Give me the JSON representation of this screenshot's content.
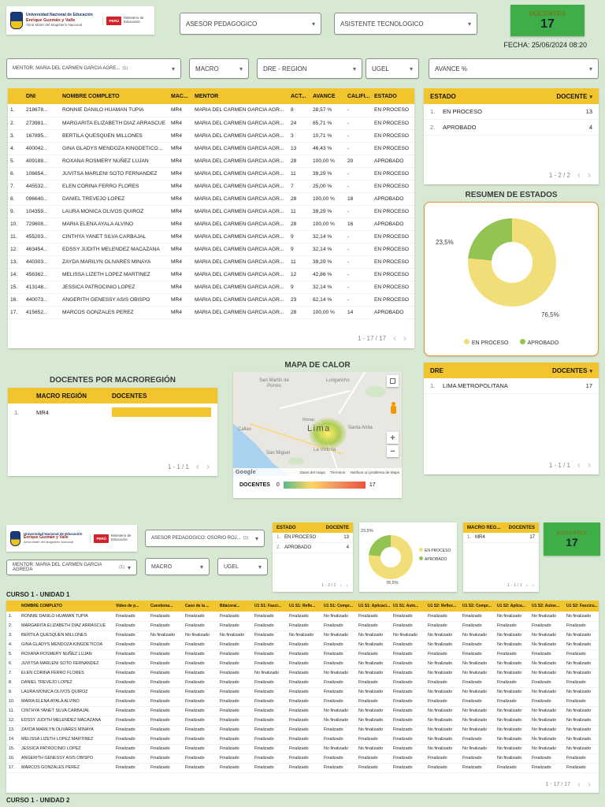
{
  "page": {
    "fecha": "FECHA: 25/06/2024 08:20"
  },
  "colors": {
    "background": "#d8e9d3",
    "table_header_yellow": "#f2c42d",
    "scorecard_green": "#3fae49",
    "donut_en_proceso": "#f2de79",
    "donut_aprobado": "#93c353",
    "resumen_card_border": "#e69138"
  },
  "logo": {
    "line1": "Universidad Nacional de Educación",
    "line2": "Enrique Guzmán y Valle",
    "line3": "Alma Máter del Magisterio Nacional",
    "peru": "PERÚ",
    "ministerio": "Ministerio de Educación"
  },
  "top_filters": {
    "asesor": "ASESOR PEDAGOGICO",
    "asistente": "ASISTENTE TECNOLOGICO"
  },
  "scorecard": {
    "label": "DOCENTES",
    "value": "17"
  },
  "filters": {
    "mentor": "MENTOR: MARIA DEL CARMEN GARCIA AGRE...",
    "mentor_count": "(1)",
    "macro": "MACRO",
    "dre": "DRE - REGION",
    "ugel": "UGEL",
    "avance": "AVANCE %"
  },
  "main_table": {
    "headers": {
      "dni": "DNI",
      "nombre": "NOMBRE COMPLETO",
      "macro": "MAC...",
      "mentor": "MENTOR",
      "act": "ACT...",
      "avance": "AVANCE",
      "calif": "CALIFI...",
      "estado": "ESTADO"
    },
    "rows": [
      {
        "dni": "218678...",
        "nombre": "RONNIE DANILO HUAMAN TUPIA",
        "macro": "MR4",
        "mentor": "MARIA DEL CARMEN GARCIA AGR...",
        "act": "8",
        "avance": "28,57 %",
        "calif": "-",
        "estado": "EN PROCESO"
      },
      {
        "dni": "273981...",
        "nombre": "MARGARITA ELIZABETH DIAZ ARRASCUE",
        "macro": "MR4",
        "mentor": "MARIA DEL CARMEN GARCIA AGR...",
        "act": "24",
        "avance": "85,71 %",
        "calif": "-",
        "estado": "EN PROCESO"
      },
      {
        "dni": "167895...",
        "nombre": "BERTILA QUESQUEN MILLONES",
        "macro": "MR4",
        "mentor": "MARIA DEL CARMEN GARCIA AGR...",
        "act": "3",
        "avance": "10,71 %",
        "calif": "-",
        "estado": "EN PROCESO"
      },
      {
        "dni": "400042...",
        "nombre": "GINA GLADYS MENDOZA KINGDETICO...",
        "macro": "MR4",
        "mentor": "MARIA DEL CARMEN GARCIA AGR...",
        "act": "13",
        "avance": "46,43 %",
        "calif": "-",
        "estado": "EN PROCESO"
      },
      {
        "dni": "409188...",
        "nombre": "ROXANA ROSMERY NUÑEZ LUJAN",
        "macro": "MR4",
        "mentor": "MARIA DEL CARMEN GARCIA AGR...",
        "act": "28",
        "avance": "100,00 %",
        "calif": "20",
        "estado": "APROBADO"
      },
      {
        "dni": "106654...",
        "nombre": "JUVITSA MARLENI SOTO FERNANDEZ",
        "macro": "MR4",
        "mentor": "MARIA DEL CARMEN GARCIA AGR...",
        "act": "11",
        "avance": "39,29 %",
        "calif": "-",
        "estado": "EN PROCESO"
      },
      {
        "dni": "445532...",
        "nombre": "ELEN CORINA FERRO FLORES",
        "macro": "MR4",
        "mentor": "MARIA DEL CARMEN GARCIA AGR...",
        "act": "7",
        "avance": "25,00 %",
        "calif": "-",
        "estado": "EN PROCESO"
      },
      {
        "dni": "096640...",
        "nombre": "DANIEL TREVEJO LOPEZ",
        "macro": "MR4",
        "mentor": "MARIA DEL CARMEN GARCIA AGR...",
        "act": "28",
        "avance": "100,00 %",
        "calif": "18",
        "estado": "APROBADO"
      },
      {
        "dni": "104359...",
        "nombre": "LAURA MONICA OLIVOS QUIROZ",
        "macro": "MR4",
        "mentor": "MARIA DEL CARMEN GARCIA AGR...",
        "act": "11",
        "avance": "39,29 %",
        "calif": "-",
        "estado": "EN PROCESO"
      },
      {
        "dni": "729808...",
        "nombre": "MARIA ELENA AYALA ALVINO",
        "macro": "MR4",
        "mentor": "MARIA DEL CARMEN GARCIA AGR...",
        "act": "28",
        "avance": "100,00 %",
        "calif": "16",
        "estado": "APROBADO"
      },
      {
        "dni": "455203...",
        "nombre": "CINTHYA YANET SILVA CARBAJAL",
        "macro": "MR4",
        "mentor": "MARIA DEL CARMEN GARCIA AGR...",
        "act": "9",
        "avance": "32,14 %",
        "calif": "-",
        "estado": "EN PROCESO"
      },
      {
        "dni": "463454...",
        "nombre": "EDSSY JUDITH MELENDEZ MACAZANA",
        "macro": "MR4",
        "mentor": "MARIA DEL CARMEN GARCIA AGR...",
        "act": "9",
        "avance": "32,14 %",
        "calif": "-",
        "estado": "EN PROCESO"
      },
      {
        "dni": "440303...",
        "nombre": "ZAYDA MARILYN OLIVARES MINAYA",
        "macro": "MR4",
        "mentor": "MARIA DEL CARMEN GARCIA AGR...",
        "act": "11",
        "avance": "39,29 %",
        "calif": "-",
        "estado": "EN PROCESO"
      },
      {
        "dni": "456362...",
        "nombre": "MELISSA LIZETH LOPEZ MARTINEZ",
        "macro": "MR4",
        "mentor": "MARIA DEL CARMEN GARCIA AGR...",
        "act": "12",
        "avance": "42,86 %",
        "calif": "-",
        "estado": "EN PROCESO"
      },
      {
        "dni": "413148...",
        "nombre": "JESSICA PATROCINIO LOPEZ",
        "macro": "MR4",
        "mentor": "MARIA DEL CARMEN GARCIA AGR...",
        "act": "9",
        "avance": "32,14 %",
        "calif": "-",
        "estado": "EN PROCESO"
      },
      {
        "dni": "440073...",
        "nombre": "ANGERITH GENESSY ASIS OBISPO",
        "macro": "MR4",
        "mentor": "MARIA DEL CARMEN GARCIA AGR...",
        "act": "23",
        "avance": "82,14 %",
        "calif": "-",
        "estado": "EN PROCESO"
      },
      {
        "dni": "415652...",
        "nombre": "MARCOS GONZALES PEREZ",
        "macro": "MR4",
        "mentor": "MARIA DEL CARMEN GARCIA AGR...",
        "act": "28",
        "avance": "100,00 %",
        "calif": "14",
        "estado": "APROBADO"
      }
    ],
    "pagination": "1 - 17 / 17"
  },
  "estado_table": {
    "header_estado": "ESTADO",
    "header_docente": "DOCENTE",
    "rows": [
      {
        "label": "EN PROCESO",
        "value": "13"
      },
      {
        "label": "APROBADO",
        "value": "4"
      }
    ],
    "pagination": "1 - 2 / 2"
  },
  "resumen": {
    "title": "RESUMEN DE ESTADOS",
    "pct_aprobado": "23,5%",
    "pct_en_proceso": "76,5%",
    "legend": [
      {
        "label": "EN PROCESO",
        "color": "#f2de79"
      },
      {
        "label": "APROBADO",
        "color": "#93c353"
      }
    ]
  },
  "macro_table": {
    "title": "DOCENTES POR MACROREGIÓN",
    "header_macro": "MACRO REGIÓN",
    "header_docentes": "DOCENTES",
    "rows": [
      {
        "label": "MR4",
        "bar_pct": 100
      }
    ],
    "pagination": "1 - 1 / 1"
  },
  "map": {
    "title": "MAPA DE CALOR",
    "labels": [
      "San Martín de Porres",
      "Lurigancho",
      "Rímac",
      "Lima",
      "Santa Anita",
      "Callao",
      "San Miguel",
      "La Victoria"
    ],
    "google": "Google",
    "attribution": [
      "Datos del mapa",
      "Términos",
      "Notificar un problema de Maps"
    ],
    "legend_label": "DOCENTES",
    "legend_min": "0",
    "legend_max": "17"
  },
  "dre_table": {
    "header_dre": "DRE",
    "header_docentes": "DOCENTES",
    "rows": [
      {
        "label": "LIMA METROPOLITANA",
        "value": "17"
      }
    ],
    "pagination": "1 - 1 / 1"
  },
  "section2": {
    "asesor": "ASESOR PEDAGOGICO: OSORIO ROJ...",
    "asesor_count": "(1)",
    "mentor": "MENTOR: MARIA DEL CARMEN GARCIA AGREDA",
    "mentor_count": "(1)",
    "macro": "MACRO",
    "ugel": "UGEL",
    "estado_mini": {
      "header_estado": "ESTADO",
      "header_docente": "DOCENTE",
      "rows": [
        {
          "label": "EN PROCESO",
          "value": "13"
        },
        {
          "label": "APROBADO",
          "value": "4"
        }
      ],
      "pagination": "1 - 2 / 2"
    },
    "donut_mini": {
      "pct_aprobado": "23,5%",
      "pct_en_proceso": "76,5%",
      "legend": [
        "EN PROCESO",
        "APROBADO"
      ]
    },
    "macro_mini": {
      "header_macro": "MACRO REG...",
      "header_docentes": "DOCENTES",
      "rows": [
        {
          "label": "MR4",
          "value": "17"
        }
      ],
      "pagination": "1 - 1 / 1"
    },
    "scorecard": {
      "label": "DOCENTES",
      "value": "17"
    },
    "curso1_title": "CURSO 1 - UNIDAD 1",
    "curso2_title": "CURSO 1 - UNIDAD 2"
  },
  "curso_table": {
    "headers": [
      "NOMBRE COMPLETO",
      "Video de p...",
      "Cuestiona...",
      "Caso de la ...",
      "Bitácora/...",
      "U1 S1: Fasci...",
      "U1 S1: Refle...",
      "U1 S1: Compr...",
      "U1 S1: Aplicaci...",
      "U1 S1: Auto...",
      "U1 S2: Reflex...",
      "U1 S2: Compr...",
      "U1 S2: Aplica...",
      "U1 S2: Autoe...",
      "U1 S2: Fascícu..."
    ],
    "rows": [
      {
        "name": "RONNIE DANILO HUAMAN TUPIA",
        "statuses": [
          "Finalizado",
          "Finalizado",
          "Finalizado",
          "Finalizado",
          "Finalizado",
          "Finalizado",
          "No finalizado",
          "Finalizado",
          "Finalizado",
          "Finalizado",
          "Finalizado",
          "No finalizado",
          "No finalizado",
          "No finalizado"
        ]
      },
      {
        "name": "MARGARITA ELIZABETH DIAZ ARRASCUE",
        "statuses": [
          "Finalizado",
          "Finalizado",
          "Finalizado",
          "Finalizado",
          "Finalizado",
          "Finalizado",
          "Finalizado",
          "Finalizado",
          "Finalizado",
          "Finalizado",
          "Finalizado",
          "Finalizado",
          "Finalizado",
          "Finalizado"
        ]
      },
      {
        "name": "BERTILA QUESQUEN MILLONES",
        "statuses": [
          "Finalizado",
          "No finalizado",
          "No finalizado",
          "No finalizado",
          "Finalizado",
          "No finalizado",
          "No finalizado",
          "No finalizado",
          "No finalizado",
          "No finalizado",
          "No finalizado",
          "No finalizado",
          "No finalizado",
          "No finalizado"
        ]
      },
      {
        "name": "GINA GLADYS MENDOZA KINGDETICOA",
        "statuses": [
          "Finalizado",
          "Finalizado",
          "Finalizado",
          "Finalizado",
          "Finalizado",
          "Finalizado",
          "Finalizado",
          "No finalizado",
          "Finalizado",
          "No finalizado",
          "Finalizado",
          "No finalizado",
          "No finalizado",
          "No finalizado"
        ]
      },
      {
        "name": "ROXANA ROSMERY NUÑEZ LUJAN",
        "statuses": [
          "Finalizado",
          "Finalizado",
          "Finalizado",
          "Finalizado",
          "Finalizado",
          "Finalizado",
          "Finalizado",
          "Finalizado",
          "Finalizado",
          "Finalizado",
          "Finalizado",
          "Finalizado",
          "Finalizado",
          "Finalizado"
        ]
      },
      {
        "name": "JUVITSA MARLENI SOTO FERNANDEZ",
        "statuses": [
          "Finalizado",
          "Finalizado",
          "Finalizado",
          "Finalizado",
          "Finalizado",
          "Finalizado",
          "Finalizado",
          "No finalizado",
          "Finalizado",
          "No finalizado",
          "No finalizado",
          "No finalizado",
          "No finalizado",
          "No finalizado"
        ]
      },
      {
        "name": "ELEN CORINA FERRO FLORES",
        "statuses": [
          "Finalizado",
          "Finalizado",
          "Finalizado",
          "Finalizado",
          "No finalizado",
          "Finalizado",
          "No finalizado",
          "No finalizado",
          "Finalizado",
          "No finalizado",
          "No finalizado",
          "No finalizado",
          "No finalizado",
          "No finalizado"
        ]
      },
      {
        "name": "DANIEL TREVEJO LOPEZ",
        "statuses": [
          "Finalizado",
          "Finalizado",
          "Finalizado",
          "Finalizado",
          "Finalizado",
          "Finalizado",
          "Finalizado",
          "Finalizado",
          "Finalizado",
          "Finalizado",
          "Finalizado",
          "Finalizado",
          "Finalizado",
          "Finalizado"
        ]
      },
      {
        "name": "LAURA MONICA OLIVOS QUIROZ",
        "statuses": [
          "Finalizado",
          "Finalizado",
          "Finalizado",
          "Finalizado",
          "Finalizado",
          "Finalizado",
          "Finalizado",
          "No finalizado",
          "Finalizado",
          "No finalizado",
          "No finalizado",
          "No finalizado",
          "No finalizado",
          "No finalizado"
        ]
      },
      {
        "name": "MARIA ELENA AYALA ALVINO",
        "statuses": [
          "Finalizado",
          "Finalizado",
          "Finalizado",
          "Finalizado",
          "Finalizado",
          "Finalizado",
          "Finalizado",
          "Finalizado",
          "Finalizado",
          "Finalizado",
          "Finalizado",
          "Finalizado",
          "Finalizado",
          "Finalizado"
        ]
      },
      {
        "name": "CINTHYA YANET SILVA CARBAJAL",
        "statuses": [
          "Finalizado",
          "Finalizado",
          "Finalizado",
          "Finalizado",
          "Finalizado",
          "Finalizado",
          "No finalizado",
          "No finalizado",
          "Finalizado",
          "No finalizado",
          "No finalizado",
          "No finalizado",
          "No finalizado",
          "No finalizado"
        ]
      },
      {
        "name": "EDSSY JUDITH MELENDEZ MACAZANA",
        "statuses": [
          "Finalizado",
          "Finalizado",
          "Finalizado",
          "Finalizado",
          "Finalizado",
          "Finalizado",
          "No finalizado",
          "No finalizado",
          "Finalizado",
          "No finalizado",
          "No finalizado",
          "No finalizado",
          "No finalizado",
          "No finalizado"
        ]
      },
      {
        "name": "ZAYDA MARILYN OLIVARES MINAYA",
        "statuses": [
          "Finalizado",
          "Finalizado",
          "Finalizado",
          "Finalizado",
          "Finalizado",
          "Finalizado",
          "Finalizado",
          "No finalizado",
          "Finalizado",
          "No finalizado",
          "No finalizado",
          "No finalizado",
          "No finalizado",
          "No finalizado"
        ]
      },
      {
        "name": "MELISSA LIZETH LOPEZ MARTINEZ",
        "statuses": [
          "Finalizado",
          "Finalizado",
          "Finalizado",
          "Finalizado",
          "Finalizado",
          "Finalizado",
          "Finalizado",
          "Finalizado",
          "Finalizado",
          "No finalizado",
          "Finalizado",
          "No finalizado",
          "No finalizado",
          "No finalizado"
        ]
      },
      {
        "name": "JESSICA PATROCINIO LOPEZ",
        "statuses": [
          "Finalizado",
          "Finalizado",
          "Finalizado",
          "Finalizado",
          "Finalizado",
          "Finalizado",
          "No finalizado",
          "No finalizado",
          "Finalizado",
          "No finalizado",
          "No finalizado",
          "No finalizado",
          "No finalizado",
          "No finalizado"
        ]
      },
      {
        "name": "ANGERITH GENESSY ASIS OBISPO",
        "statuses": [
          "Finalizado",
          "Finalizado",
          "Finalizado",
          "Finalizado",
          "Finalizado",
          "Finalizado",
          "Finalizado",
          "Finalizado",
          "Finalizado",
          "Finalizado",
          "Finalizado",
          "No finalizado",
          "Finalizado",
          "Finalizado"
        ]
      },
      {
        "name": "MARCOS GONZALES PEREZ",
        "statuses": [
          "Finalizado",
          "Finalizado",
          "Finalizado",
          "Finalizado",
          "Finalizado",
          "Finalizado",
          "Finalizado",
          "Finalizado",
          "Finalizado",
          "Finalizado",
          "Finalizado",
          "Finalizado",
          "Finalizado",
          "Finalizado"
        ]
      }
    ],
    "pagination": "1 - 17 / 17"
  },
  "chart_data": [
    {
      "type": "pie",
      "title": "RESUMEN DE ESTADOS",
      "donut": true,
      "labels": [
        "EN PROCESO",
        "APROBADO"
      ],
      "values": [
        76.5,
        23.5
      ],
      "value_labels": [
        "76,5%",
        "23,5%"
      ],
      "counts": [
        13,
        4
      ],
      "colors": [
        "#f2de79",
        "#93c353"
      ],
      "legend_position": "bottom"
    },
    {
      "type": "bar",
      "title": "DOCENTES POR MACROREGIÓN",
      "orientation": "horizontal",
      "categories": [
        "MR4"
      ],
      "values": [
        17
      ],
      "xlim": [
        0,
        17
      ]
    },
    {
      "type": "heatmap",
      "title": "MAPA DE CALOR",
      "points": [
        {
          "label": "Lima",
          "value": 17
        }
      ],
      "scale_label": "DOCENTES",
      "scale_min": 0,
      "scale_max": 17,
      "scale_colors": [
        "#57bb8a",
        "#ffd666",
        "#e8553d"
      ]
    }
  ]
}
